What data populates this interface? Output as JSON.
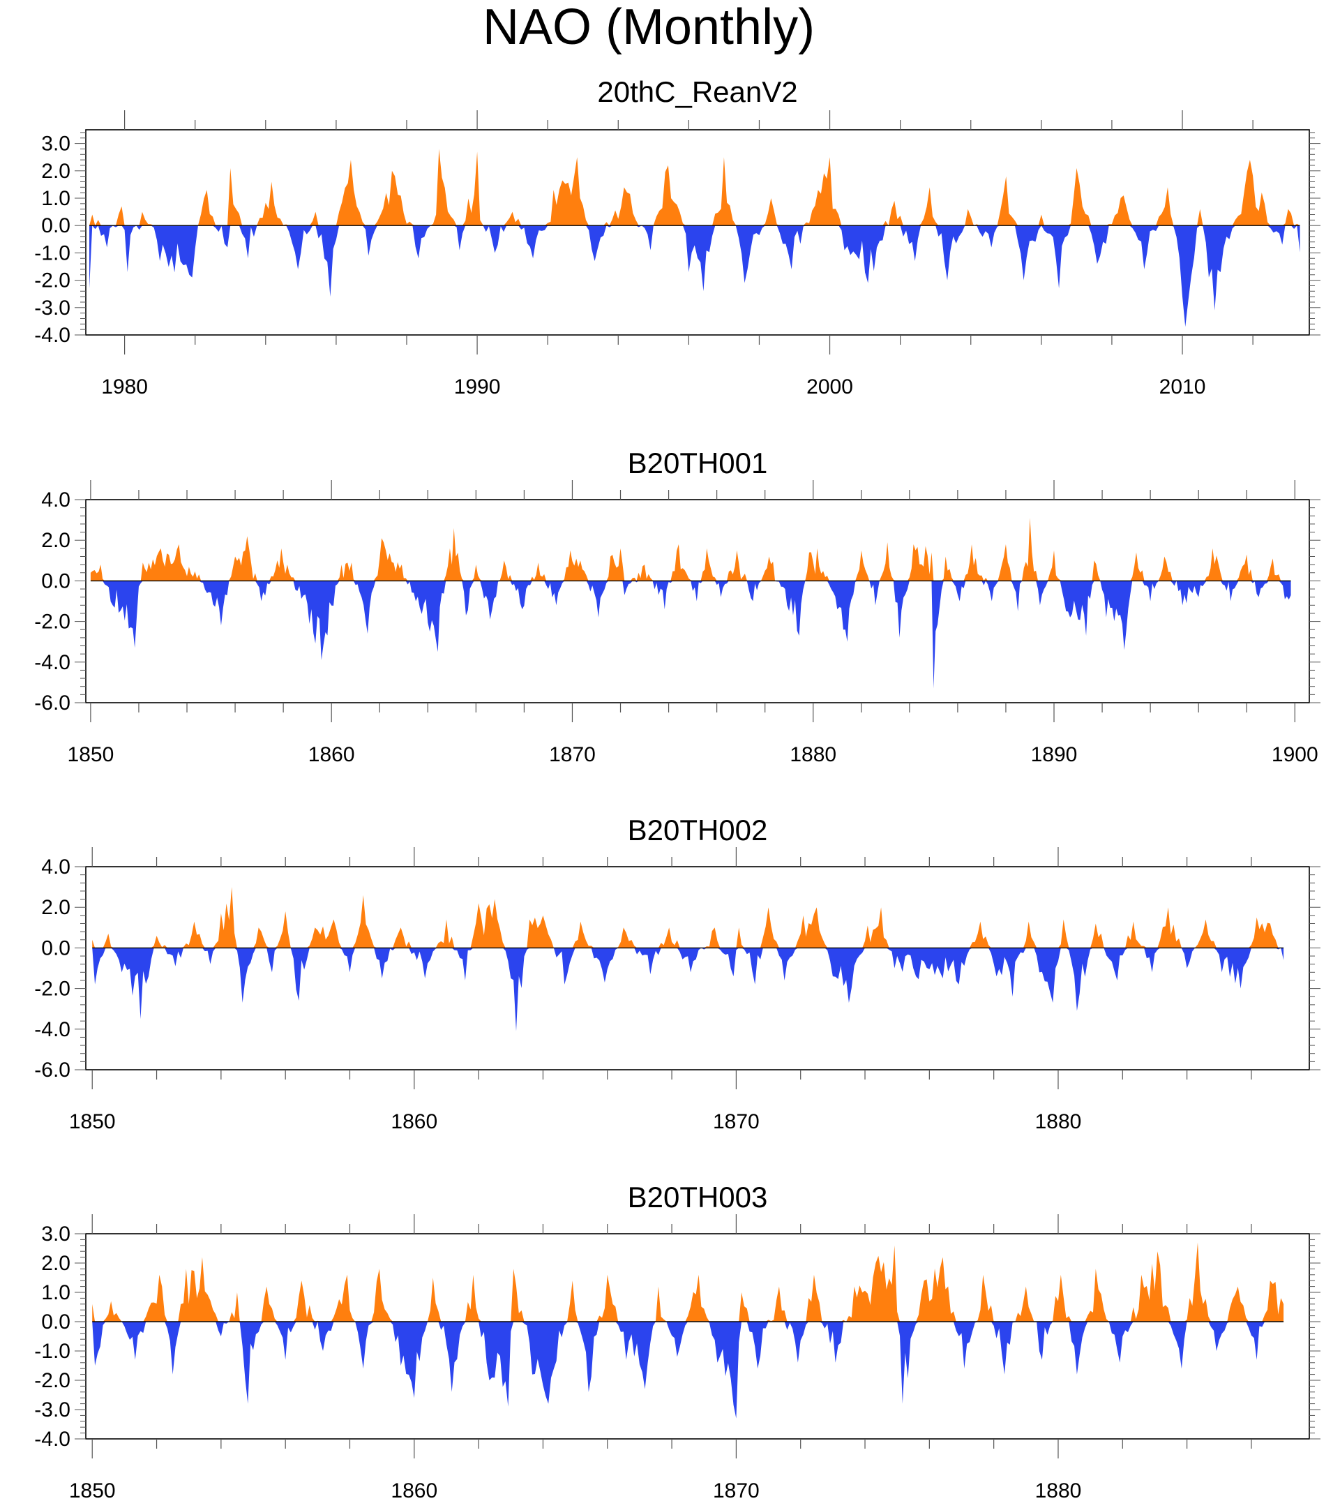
{
  "figure": {
    "title": "NAO (Monthly)"
  },
  "colors": {
    "positive": "#ff7f0e",
    "negative": "#2b44ee",
    "frame": "#000000"
  },
  "chart_data": [
    {
      "type": "area",
      "title": "20thC_ReanV2",
      "x_range": [
        1978.9,
        2013.6
      ],
      "ylim": [
        -4.0,
        3.5
      ],
      "y_ticks": [
        -4.0,
        -3.0,
        -2.0,
        -1.0,
        0.0,
        1.0,
        2.0,
        3.0
      ],
      "y_tick_labels": [
        "-4.0",
        "-3.0",
        "-2.0",
        "-1.0",
        "0.0",
        "1.0",
        "2.0",
        "3.0"
      ],
      "y_minor_step": 0.2,
      "x_ticks": [
        1980,
        1990,
        2000,
        2010
      ],
      "x_tick_labels": [
        "1980",
        "1990",
        "2000",
        "2010"
      ],
      "x_minor_step": 2,
      "data_range": [
        1979.0,
        2013.4
      ],
      "fill": "positive orange, negative blue, baseline 0.0",
      "series": [
        {
          "x": [
            1979.0,
            1979.1,
            1979.5,
            1979.9,
            1980.1,
            1980.5,
            1981.0,
            1981.9,
            1982.3,
            1982.9,
            1983.0,
            1983.5,
            1984.2,
            1984.9,
            1985.4,
            1985.8,
            1986.1,
            1986.4,
            1986.9,
            1987.6,
            1988.3,
            1988.8,
            1988.9,
            1989.5,
            1990.0,
            1990.1,
            1990.5,
            1991.0,
            1991.6,
            1992.2,
            1992.8,
            1993.3,
            1994.2,
            1994.9,
            1995.4,
            1995.9,
            1996.0,
            1996.4,
            1997.0,
            1997.6,
            1998.3,
            1998.9,
            1999.7,
            2000.0,
            2000.4,
            2001.1,
            2001.8,
            2002.4,
            2002.8,
            2003.3,
            2003.9,
            2004.6,
            2005.0,
            2005.5,
            2006.0,
            2006.5,
            2007.0,
            2007.6,
            2008.3,
            2008.9,
            2009.6,
            2010.0,
            2010.1,
            2010.5,
            2010.9,
            2011.3,
            2011.9,
            2012.3,
            2012.8,
            2013.0,
            2013.4
          ],
          "y": [
            -2.3,
            0.4,
            -0.8,
            0.7,
            -1.7,
            0.5,
            -1.3,
            -1.9,
            1.3,
            -0.8,
            2.1,
            -1.2,
            1.6,
            -1.6,
            0.5,
            -2.6,
            0.5,
            2.4,
            -1.1,
            2.0,
            -1.2,
            0.4,
            2.8,
            -0.9,
            2.7,
            0.2,
            -1.0,
            0.5,
            -1.2,
            1.3,
            2.5,
            -1.3,
            1.4,
            -0.9,
            2.2,
            -0.3,
            -1.7,
            -2.4,
            2.5,
            -2.1,
            1.0,
            -1.6,
            1.3,
            2.5,
            -0.9,
            -2.1,
            0.9,
            -1.3,
            1.4,
            -2.0,
            0.6,
            -0.8,
            1.8,
            -2.0,
            0.4,
            -2.3,
            2.1,
            -1.4,
            1.1,
            -1.6,
            1.4,
            -2.6,
            -3.7,
            0.6,
            -3.1,
            -0.5,
            2.4,
            0.8,
            -0.7,
            0.6,
            -1.1
          ]
        }
      ]
    },
    {
      "type": "area",
      "title": "B20TH001",
      "x_range": [
        1849.8,
        1900.6
      ],
      "ylim": [
        -6.0,
        4.0
      ],
      "y_ticks": [
        -6.0,
        -4.0,
        -2.0,
        0.0,
        2.0,
        4.0
      ],
      "y_tick_labels": [
        "-6.0",
        "-4.0",
        "-2.0",
        "0.0",
        "2.0",
        "4.0"
      ],
      "y_minor_step": 0.4,
      "x_ticks": [
        1850,
        1860,
        1870,
        1880,
        1890,
        1900
      ],
      "x_tick_labels": [
        "1850",
        "1860",
        "1870",
        "1880",
        "1890",
        "1900"
      ],
      "x_minor_step": 2,
      "data_range": [
        1850.0,
        1899.9
      ],
      "fill": "positive orange, negative blue, baseline 0.0",
      "series": [
        {
          "x": [
            1850.0,
            1850.4,
            1850.9,
            1851.8,
            1852.2,
            1852.9,
            1853.7,
            1854.8,
            1855.4,
            1856.0,
            1856.5,
            1857.1,
            1857.9,
            1858.6,
            1859.6,
            1860.4,
            1860.8,
            1861.5,
            1862.1,
            1862.9,
            1863.5,
            1864.1,
            1864.4,
            1864.9,
            1865.1,
            1865.6,
            1866.0,
            1866.6,
            1867.2,
            1867.9,
            1868.6,
            1869.3,
            1869.9,
            1870.3,
            1871.1,
            1871.6,
            1872.0,
            1872.2,
            1873.0,
            1873.8,
            1874.4,
            1875.2,
            1875.6,
            1876.2,
            1876.8,
            1877.5,
            1878.2,
            1878.9,
            1879.4,
            1879.8,
            1880.2,
            1881.0,
            1881.4,
            1882.0,
            1882.6,
            1883.1,
            1883.6,
            1884.2,
            1884.9,
            1885.0,
            1885.5,
            1886.1,
            1886.6,
            1887.4,
            1888.0,
            1888.5,
            1889.0,
            1889.4,
            1890.0,
            1890.5,
            1891.3,
            1891.7,
            1892.2,
            1892.9,
            1893.4,
            1894.0,
            1894.6,
            1895.3,
            1896.0,
            1896.6,
            1897.3,
            1898.0,
            1898.5,
            1899.1,
            1899.6,
            1899.9
          ],
          "y": [
            0.4,
            0.8,
            -1.2,
            -3.3,
            0.9,
            1.6,
            1.8,
            -0.6,
            -2.2,
            1.2,
            2.2,
            -1.0,
            1.6,
            -0.5,
            -3.9,
            0.8,
            0.9,
            -2.6,
            2.1,
            0.8,
            -1.0,
            -2.5,
            -3.5,
            1.6,
            2.6,
            -1.7,
            0.8,
            -1.9,
            1.0,
            -1.4,
            0.9,
            -1.2,
            1.5,
            1.0,
            -1.8,
            1.2,
            1.6,
            -0.7,
            0.8,
            -1.4,
            1.8,
            -1.0,
            1.6,
            -0.8,
            1.5,
            -1.0,
            1.2,
            -1.2,
            -2.7,
            1.4,
            1.6,
            -1.4,
            -3.0,
            1.5,
            -1.2,
            1.9,
            -2.8,
            1.8,
            1.4,
            -5.3,
            1.2,
            -1.0,
            1.8,
            -1.0,
            1.8,
            -1.5,
            3.1,
            -1.2,
            1.5,
            -1.5,
            -2.7,
            1.0,
            -1.8,
            -3.4,
            1.4,
            -1.0,
            1.2,
            -1.2,
            -0.8,
            1.6,
            -1.0,
            1.3,
            -0.8,
            1.1,
            -0.9,
            -1.1
          ]
        }
      ]
    },
    {
      "type": "area",
      "title": "B20TH002",
      "x_range": [
        1849.8,
        1887.8
      ],
      "ylim": [
        -6.0,
        4.0
      ],
      "y_ticks": [
        -6.0,
        -4.0,
        -2.0,
        0.0,
        2.0,
        4.0
      ],
      "y_tick_labels": [
        "-6.0",
        "-4.0",
        "-2.0",
        "0.0",
        "2.0",
        "4.0"
      ],
      "y_minor_step": 0.4,
      "x_ticks": [
        1850,
        1860,
        1870,
        1880
      ],
      "x_tick_labels": [
        "1850",
        "1860",
        "1870",
        "1880"
      ],
      "x_minor_step": 2,
      "data_range": [
        1850.0,
        1887.0
      ],
      "fill": "positive orange, negative blue, baseline 0.0",
      "series": [
        {
          "x": [
            1850.0,
            1850.1,
            1850.5,
            1850.9,
            1851.5,
            1852.0,
            1852.6,
            1853.2,
            1853.7,
            1854.0,
            1854.3,
            1854.7,
            1855.2,
            1855.6,
            1856.0,
            1856.4,
            1856.9,
            1857.5,
            1858.0,
            1858.4,
            1859.0,
            1859.6,
            1860.3,
            1861.0,
            1861.6,
            1862.0,
            1862.5,
            1863.0,
            1863.2,
            1863.6,
            1864.0,
            1864.7,
            1865.2,
            1865.9,
            1866.5,
            1867.3,
            1867.9,
            1868.6,
            1869.3,
            1869.9,
            1870.1,
            1870.6,
            1871.0,
            1871.5,
            1872.1,
            1872.5,
            1873.0,
            1873.5,
            1874.1,
            1874.5,
            1874.9,
            1875.6,
            1876.3,
            1876.9,
            1877.6,
            1878.1,
            1878.6,
            1879.1,
            1879.4,
            1879.8,
            1880.2,
            1880.6,
            1881.2,
            1881.8,
            1882.3,
            1882.9,
            1883.4,
            1884.0,
            1884.6,
            1885.1,
            1885.7,
            1886.2,
            1886.6,
            1887.0
          ],
          "y": [
            0.4,
            -1.8,
            0.7,
            -1.2,
            -3.5,
            0.6,
            -0.9,
            1.3,
            -0.8,
            1.7,
            3.0,
            -2.7,
            1.0,
            -1.2,
            1.8,
            -2.6,
            1.0,
            1.4,
            -1.2,
            2.6,
            -1.5,
            1.0,
            -1.5,
            1.4,
            -1.6,
            2.2,
            2.4,
            -1.5,
            -4.1,
            1.4,
            1.6,
            -1.8,
            1.3,
            -1.7,
            1.0,
            -1.3,
            1.0,
            -1.2,
            1.0,
            -1.4,
            1.0,
            -1.8,
            2.0,
            -1.6,
            1.6,
            2.0,
            -1.4,
            -2.7,
            1.1,
            2.0,
            -1.0,
            -1.4,
            -1.2,
            -1.8,
            1.3,
            -1.4,
            -2.4,
            1.3,
            -1.2,
            -2.7,
            1.4,
            -3.1,
            1.2,
            -1.6,
            1.3,
            -1.2,
            2.0,
            -1.0,
            1.4,
            -1.2,
            -2.0,
            1.5,
            1.2,
            -0.6
          ]
        }
      ]
    },
    {
      "type": "area",
      "title": "B20TH003",
      "x_range": [
        1849.8,
        1887.8
      ],
      "ylim": [
        -4.0,
        3.0
      ],
      "y_ticks": [
        -4.0,
        -3.0,
        -2.0,
        -1.0,
        0.0,
        1.0,
        2.0,
        3.0
      ],
      "y_tick_labels": [
        "-4.0",
        "-3.0",
        "-2.0",
        "-1.0",
        "0.0",
        "1.0",
        "2.0",
        "3.0"
      ],
      "y_minor_step": 0.2,
      "x_ticks": [
        1850,
        1860,
        1870,
        1880
      ],
      "x_tick_labels": [
        "1850",
        "1860",
        "1870",
        "1880"
      ],
      "x_minor_step": 2,
      "data_range": [
        1850.0,
        1887.0
      ],
      "fill": "positive orange, negative blue, baseline 0.0",
      "series": [
        {
          "x": [
            1850.0,
            1850.1,
            1850.6,
            1851.3,
            1852.1,
            1852.5,
            1852.9,
            1853.4,
            1854.0,
            1854.5,
            1854.8,
            1855.4,
            1856.0,
            1856.5,
            1857.2,
            1857.9,
            1858.4,
            1858.9,
            1859.6,
            1860.0,
            1860.6,
            1861.2,
            1861.8,
            1862.3,
            1862.9,
            1863.1,
            1863.7,
            1864.2,
            1864.9,
            1865.4,
            1866.0,
            1866.6,
            1867.2,
            1867.6,
            1868.2,
            1868.8,
            1869.4,
            1870.0,
            1870.2,
            1870.7,
            1871.3,
            1871.9,
            1872.4,
            1873.1,
            1873.7,
            1874.3,
            1874.9,
            1875.2,
            1875.8,
            1876.4,
            1877.1,
            1877.7,
            1878.3,
            1879.0,
            1879.5,
            1880.1,
            1880.6,
            1881.2,
            1881.9,
            1882.6,
            1883.1,
            1883.8,
            1884.3,
            1884.9,
            1885.6,
            1886.2,
            1886.6,
            1887.0
          ],
          "y": [
            0.6,
            -1.5,
            0.7,
            -1.3,
            1.6,
            -1.8,
            1.8,
            2.2,
            -0.5,
            1.0,
            -2.8,
            1.2,
            -1.3,
            1.4,
            -1.0,
            1.6,
            -1.6,
            1.8,
            -1.5,
            -2.6,
            1.5,
            -2.4,
            1.6,
            -2.0,
            -2.9,
            1.8,
            -1.8,
            -2.8,
            1.4,
            -2.4,
            1.6,
            -1.3,
            -2.3,
            1.2,
            -1.2,
            1.6,
            -1.4,
            -3.3,
            1.0,
            -1.6,
            1.2,
            -1.4,
            1.6,
            -1.4,
            1.2,
            2.0,
            2.6,
            -2.8,
            1.4,
            2.2,
            -1.6,
            1.6,
            -1.8,
            1.2,
            -1.3,
            1.6,
            -1.8,
            1.8,
            -1.4,
            1.6,
            2.4,
            -1.6,
            2.7,
            -1.0,
            1.2,
            -1.3,
            1.4,
            0.6
          ]
        }
      ]
    }
  ]
}
